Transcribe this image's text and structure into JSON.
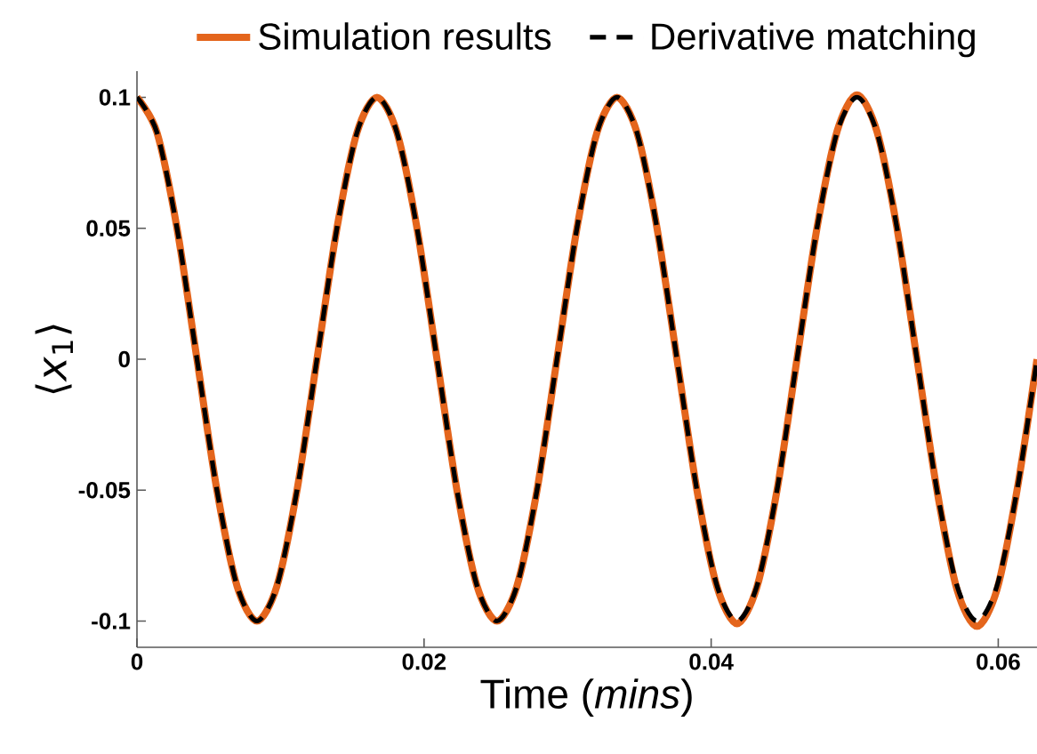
{
  "chart_data": {
    "type": "line",
    "xlabel": "Time (*mins*)",
    "ylabel": "⟨*x*$_{1}$⟩",
    "x": [
      0,
      0.00139,
      0.00279,
      0.00418,
      0.00557,
      0.00697,
      0.00836,
      0.00975,
      0.01115,
      0.01254,
      0.01393,
      0.01533,
      0.01672,
      0.01811,
      0.01951,
      0.0209,
      0.02229,
      0.02369,
      0.02508,
      0.02647,
      0.02787,
      0.02926,
      0.03065,
      0.03205,
      0.03344,
      0.03483,
      0.03623,
      0.03762,
      0.03901,
      0.04041,
      0.0418,
      0.04319,
      0.04459,
      0.04598,
      0.04737,
      0.04877,
      0.05016,
      0.05155,
      0.05295,
      0.05434,
      0.05573,
      0.05713,
      0.05852,
      0.05991,
      0.06131,
      0.0627
    ],
    "series": [
      {
        "name": "Derivative matching",
        "color": "#000000",
        "line_style": "dashed",
        "values": [
          0.1,
          0.0866,
          0.05,
          0,
          -0.05,
          -0.0866,
          -0.1,
          -0.0866,
          -0.05,
          0,
          0.05,
          0.0866,
          0.1,
          0.0866,
          0.05,
          0,
          -0.05,
          -0.0866,
          -0.1,
          -0.0866,
          -0.05,
          0,
          0.05,
          0.0866,
          0.1,
          0.0866,
          0.05,
          0,
          -0.05,
          -0.0866,
          -0.1,
          -0.0866,
          -0.05,
          0,
          0.05,
          0.0866,
          0.1,
          0.0866,
          0.05,
          0,
          -0.05,
          -0.0866,
          -0.1,
          -0.0866,
          -0.05,
          0
        ]
      },
      {
        "name": "Simulation results",
        "color": "#e4651c",
        "line_style": "solid",
        "values": [
          0.1,
          0.0866,
          0.05,
          0,
          -0.05,
          -0.0866,
          -0.1,
          -0.0866,
          -0.05,
          0,
          0.05,
          0.0866,
          0.1,
          0.0866,
          0.05,
          0,
          -0.05,
          -0.0866,
          -0.1,
          -0.0866,
          -0.05,
          0,
          0.05,
          0.0866,
          0.1,
          0.0866,
          0.05,
          0,
          -0.05,
          -0.087,
          -0.101,
          -0.087,
          -0.05,
          0,
          0.05,
          0.087,
          0.101,
          0.087,
          0.05,
          0,
          -0.05,
          -0.088,
          -0.102,
          -0.088,
          -0.05,
          0
        ]
      }
    ],
    "xlim": [
      0,
      0.0627
    ],
    "ylim": [
      -0.11,
      0.11
    ],
    "xticks": [
      0,
      0.02,
      0.04,
      0.06
    ],
    "yticks": [
      -0.1,
      -0.05,
      0,
      0.05,
      0.1
    ],
    "legend": "top"
  }
}
